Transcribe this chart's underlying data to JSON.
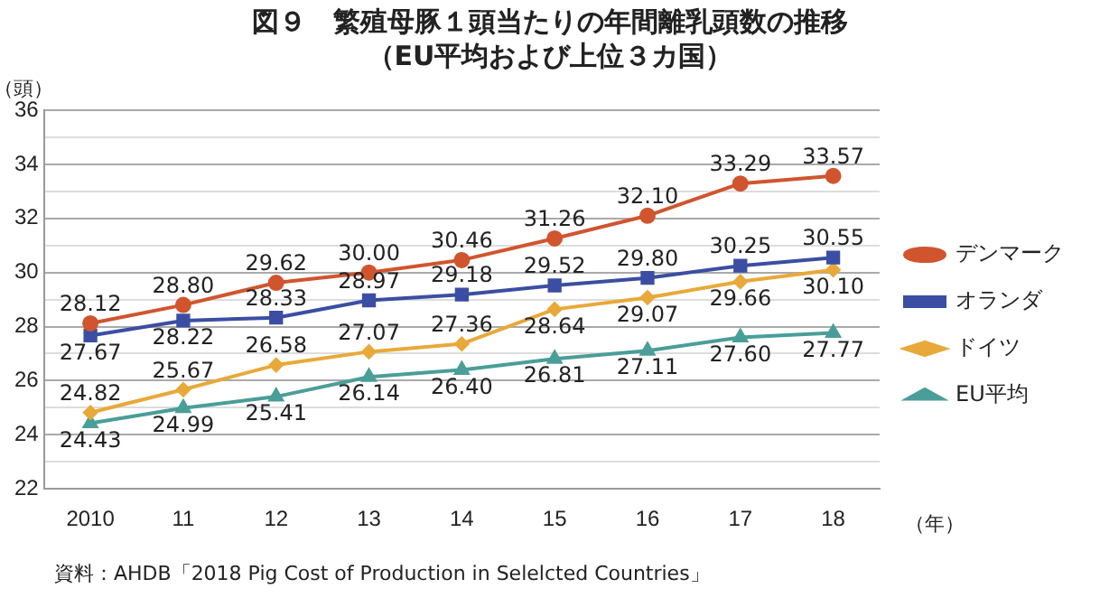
{
  "chart_data": {
    "type": "line",
    "title": "図９　繁殖母豚１頭当たりの年間離乳頭数の推移",
    "subtitle": "（EU平均および上位３カ国）",
    "ylabel": "（頭）",
    "xlabel": "（年）",
    "categories": [
      "2010",
      "11",
      "12",
      "13",
      "14",
      "15",
      "16",
      "17",
      "18"
    ],
    "series": [
      {
        "name": "デンマーク",
        "color": "#d0552e",
        "marker": "circle",
        "values": [
          28.12,
          28.8,
          29.62,
          30.0,
          30.46,
          31.26,
          32.1,
          33.29,
          33.57
        ],
        "value_labels": [
          "28.12",
          "28.80",
          "29.62",
          "30.00",
          "30.46",
          "31.26",
          "32.10",
          "33.29",
          "33.57"
        ]
      },
      {
        "name": "オランダ",
        "color": "#3b4ea3",
        "marker": "square",
        "values": [
          27.67,
          28.22,
          28.33,
          28.97,
          29.18,
          29.52,
          29.8,
          30.25,
          30.55
        ],
        "value_labels": [
          "27.67",
          "28.22",
          "28.33",
          "28.97",
          "29.18",
          "29.52",
          "29.80",
          "30.25",
          "30.55"
        ]
      },
      {
        "name": "ドイツ",
        "color": "#e8a93a",
        "marker": "diamond",
        "values": [
          24.82,
          25.67,
          26.58,
          27.07,
          27.36,
          28.64,
          29.07,
          29.66,
          30.1
        ],
        "value_labels": [
          "24.82",
          "25.67",
          "26.58",
          "27.07",
          "27.36",
          "28.64",
          "29.07",
          "29.66",
          "30.10"
        ]
      },
      {
        "name": "EU平均",
        "color": "#4a9e98",
        "marker": "triangle",
        "values": [
          24.43,
          24.99,
          25.41,
          26.14,
          26.4,
          26.81,
          27.11,
          27.6,
          27.77
        ],
        "value_labels": [
          "24.43",
          "24.99",
          "25.41",
          "26.14",
          "26.40",
          "26.81",
          "27.11",
          "27.60",
          "27.77"
        ]
      }
    ],
    "ylim": [
      22,
      36
    ],
    "yticks": [
      22,
      {
        "value": 23,
        "label": null
      },
      24,
      {
        "value": 25,
        "label": null
      },
      26,
      {
        "value": 27,
        "label": null
      },
      28,
      {
        "value": 29,
        "label": null
      },
      30,
      {
        "value": 31,
        "label": null
      },
      32,
      {
        "value": 33,
        "label": null
      },
      34,
      {
        "value": 35,
        "label": null
      },
      36
    ],
    "grid": "y",
    "legend": "right",
    "line_style": "solid",
    "annotations": [
      "資料：AHDB「2018 Pig Cost of Production in Selelcted Countries」"
    ]
  }
}
